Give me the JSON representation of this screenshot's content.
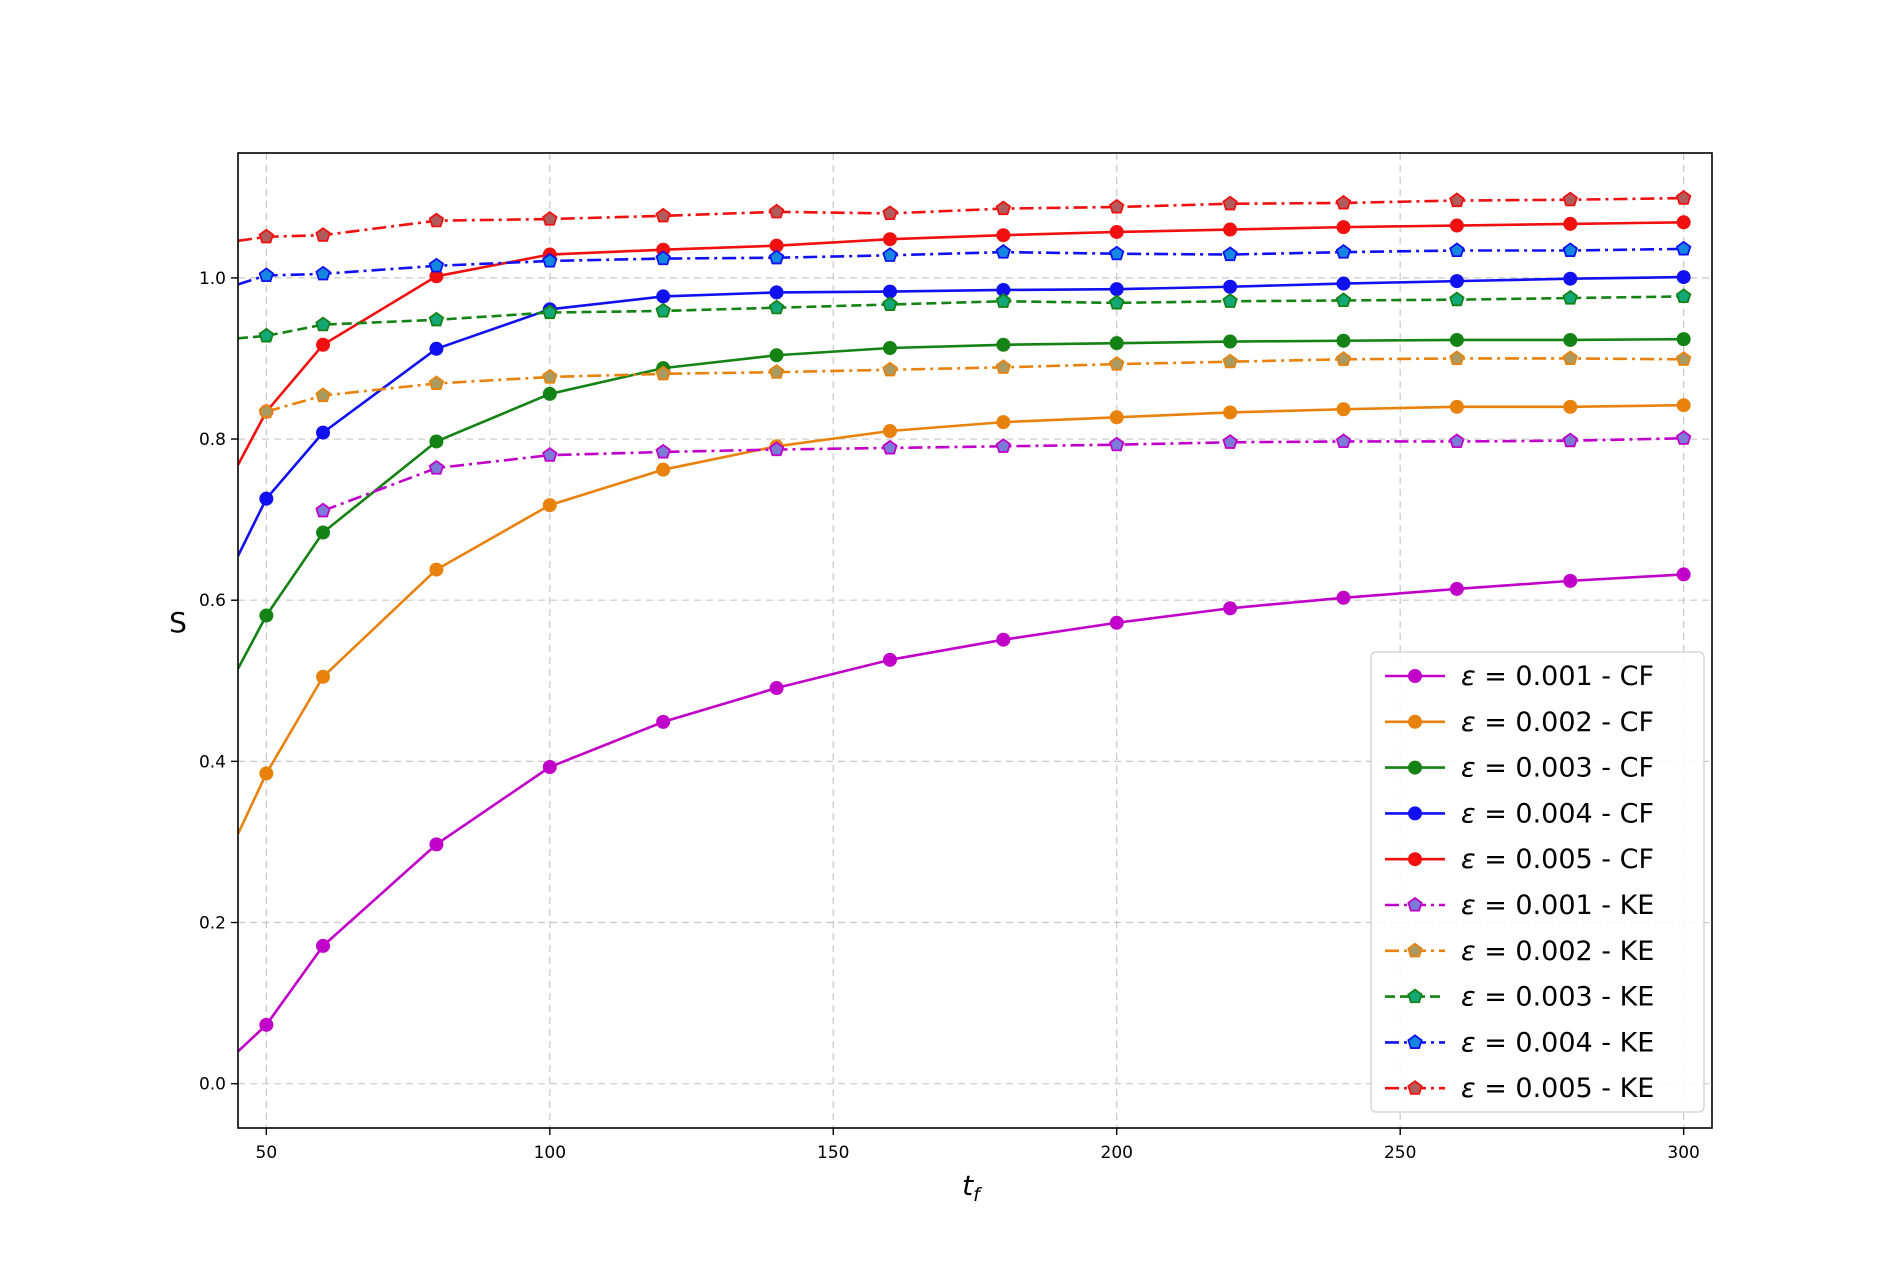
{
  "chart_data": {
    "type": "line",
    "title": "",
    "xlabel": "t_f",
    "ylabel": "S",
    "xlim": [
      45,
      305
    ],
    "ylim": [
      -0.055,
      1.155
    ],
    "xticks": [
      50,
      100,
      150,
      200,
      250,
      300
    ],
    "xtick_labels": [
      "50",
      "100",
      "150",
      "200",
      "250",
      "300"
    ],
    "yticks": [
      0.0,
      0.2,
      0.4,
      0.6,
      0.8,
      1.0
    ],
    "ytick_labels": [
      "0.0",
      "0.2",
      "0.4",
      "0.6",
      "0.8",
      "1.0"
    ],
    "grid": true,
    "legend_position": "lower-right",
    "series": [
      {
        "name": "ε = 0.001 - CF",
        "label_eps": "0.001",
        "label_method": "CF",
        "color": "#c000c8",
        "marker": "circle",
        "marker_face": "#c000c8",
        "linestyle": "solid",
        "x": [
          50,
          60,
          80,
          100,
          120,
          140,
          160,
          180,
          200,
          220,
          240,
          260,
          280,
          300
        ],
        "y": [
          0.073,
          0.171,
          0.297,
          0.393,
          0.449,
          0.491,
          0.526,
          0.551,
          0.572,
          0.59,
          0.603,
          0.614,
          0.624,
          0.632
        ],
        "extend_left_y": 0.04
      },
      {
        "name": "ε = 0.002 - CF",
        "label_eps": "0.002",
        "label_method": "CF",
        "color": "#e8820c",
        "marker": "circle",
        "marker_face": "#e8820c",
        "linestyle": "solid",
        "x": [
          50,
          60,
          80,
          100,
          120,
          140,
          160,
          180,
          200,
          220,
          240,
          260,
          280,
          300
        ],
        "y": [
          0.385,
          0.505,
          0.638,
          0.718,
          0.762,
          0.791,
          0.81,
          0.821,
          0.827,
          0.833,
          0.837,
          0.84,
          0.84,
          0.842
        ],
        "extend_left_y": 0.31
      },
      {
        "name": "ε = 0.003 - CF",
        "label_eps": "0.003",
        "label_method": "CF",
        "color": "#148214",
        "marker": "circle",
        "marker_face": "#148214",
        "linestyle": "solid",
        "x": [
          50,
          60,
          80,
          100,
          120,
          140,
          160,
          180,
          200,
          220,
          240,
          260,
          280,
          300
        ],
        "y": [
          0.581,
          0.684,
          0.797,
          0.856,
          0.888,
          0.904,
          0.913,
          0.917,
          0.919,
          0.921,
          0.922,
          0.923,
          0.923,
          0.924
        ],
        "extend_left_y": 0.515
      },
      {
        "name": "ε = 0.004 - CF",
        "label_eps": "0.004",
        "label_method": "CF",
        "color": "#1010f0",
        "marker": "circle",
        "marker_face": "#1010f0",
        "linestyle": "solid",
        "x": [
          50,
          60,
          80,
          100,
          120,
          140,
          160,
          180,
          200,
          220,
          240,
          260,
          280,
          300
        ],
        "y": [
          0.726,
          0.808,
          0.912,
          0.961,
          0.977,
          0.982,
          0.983,
          0.985,
          0.986,
          0.989,
          0.993,
          0.996,
          0.999,
          1.001
        ],
        "extend_left_y": 0.655
      },
      {
        "name": "ε = 0.005 - CF",
        "label_eps": "0.005",
        "label_method": "CF",
        "color": "#f01010",
        "marker": "circle",
        "marker_face": "#f01010",
        "linestyle": "solid",
        "x": [
          50,
          60,
          80,
          100,
          120,
          140,
          160,
          180,
          200,
          220,
          240,
          260,
          280,
          300
        ],
        "y": [
          0.834,
          0.917,
          1.002,
          1.029,
          1.035,
          1.04,
          1.048,
          1.053,
          1.057,
          1.06,
          1.063,
          1.065,
          1.067,
          1.069
        ],
        "extend_left_y": 0.768
      },
      {
        "name": "ε = 0.001 - KE",
        "label_eps": "0.001",
        "label_method": "KE",
        "color": "#c000c8",
        "marker": "pentagon",
        "marker_face": "#7c7cd8",
        "linestyle": "dashdot",
        "x": [
          60,
          80,
          100,
          120,
          140,
          160,
          180,
          200,
          220,
          240,
          260,
          280,
          300
        ],
        "y": [
          0.711,
          0.764,
          0.78,
          0.784,
          0.787,
          0.789,
          0.791,
          0.793,
          0.796,
          0.797,
          0.797,
          0.798,
          0.801
        ]
      },
      {
        "name": "ε = 0.002 - KE",
        "label_eps": "0.002",
        "label_method": "KE",
        "color": "#e8820c",
        "marker": "pentagon",
        "marker_face": "#a89a60",
        "linestyle": "dashdot",
        "x": [
          50,
          60,
          80,
          100,
          120,
          140,
          160,
          180,
          200,
          220,
          240,
          260,
          280,
          300
        ],
        "y": [
          0.834,
          0.854,
          0.869,
          0.877,
          0.881,
          0.883,
          0.886,
          0.889,
          0.893,
          0.896,
          0.899,
          0.9,
          0.9,
          0.899
        ]
      },
      {
        "name": "ε = 0.003 - KE",
        "label_eps": "0.003",
        "label_method": "KE",
        "color": "#148214",
        "marker": "pentagon",
        "marker_face": "#14a878",
        "linestyle": "dashed",
        "x": [
          50,
          60,
          80,
          100,
          120,
          140,
          160,
          180,
          200,
          220,
          240,
          260,
          280,
          300
        ],
        "y": [
          0.928,
          0.942,
          0.948,
          0.957,
          0.959,
          0.963,
          0.967,
          0.971,
          0.969,
          0.971,
          0.972,
          0.973,
          0.975,
          0.977
        ],
        "extend_left_y": 0.925
      },
      {
        "name": "ε = 0.004 - KE",
        "label_eps": "0.004",
        "label_method": "KE",
        "color": "#1010f0",
        "marker": "pentagon",
        "marker_face": "#1488e0",
        "linestyle": "dashdot",
        "x": [
          50,
          60,
          80,
          100,
          120,
          140,
          160,
          180,
          200,
          220,
          240,
          260,
          280,
          300
        ],
        "y": [
          1.003,
          1.005,
          1.015,
          1.021,
          1.024,
          1.025,
          1.028,
          1.032,
          1.03,
          1.029,
          1.032,
          1.034,
          1.034,
          1.036
        ],
        "extend_left_y": 0.992
      },
      {
        "name": "ε = 0.005 - KE",
        "label_eps": "0.005",
        "label_method": "KE",
        "color": "#f01010",
        "marker": "pentagon",
        "marker_face": "#b05c5c",
        "linestyle": "dashdot",
        "x": [
          50,
          60,
          80,
          100,
          120,
          140,
          160,
          180,
          200,
          220,
          240,
          260,
          280,
          300
        ],
        "y": [
          1.051,
          1.053,
          1.071,
          1.073,
          1.077,
          1.082,
          1.08,
          1.086,
          1.088,
          1.092,
          1.093,
          1.096,
          1.097,
          1.099
        ],
        "extend_left_y": 1.046
      }
    ]
  }
}
